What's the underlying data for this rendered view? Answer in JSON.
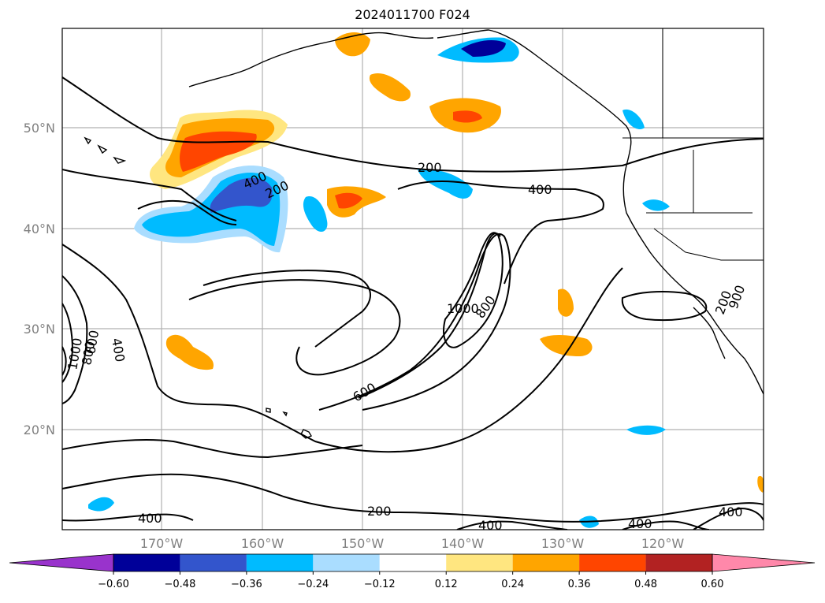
{
  "title": "2024011700 F024",
  "map": {
    "lat_labels": [
      "50°N",
      "40°N",
      "30°N",
      "20°N"
    ],
    "lon_labels": [
      "170°W",
      "160°W",
      "150°W",
      "140°W",
      "130°W",
      "120°W"
    ],
    "contour_labels": [
      "200",
      "400",
      "200",
      "400",
      "1000",
      "800",
      "1000",
      "800",
      "600",
      "400",
      "600",
      "900",
      "400",
      "200",
      "400",
      "400",
      "400",
      "200"
    ]
  },
  "colorbar": {
    "colors": [
      "#9933cc",
      "#000099",
      "#3355cc",
      "#00bbff",
      "#aaddff",
      "#ffffff",
      "#ffe680",
      "#ffa500",
      "#ff4500",
      "#b22222",
      "#ff88aa"
    ],
    "tick_labels": [
      "−0.60",
      "−0.48",
      "−0.36",
      "−0.24",
      "−0.12",
      "0.12",
      "0.24",
      "0.36",
      "0.48",
      "0.60"
    ]
  }
}
